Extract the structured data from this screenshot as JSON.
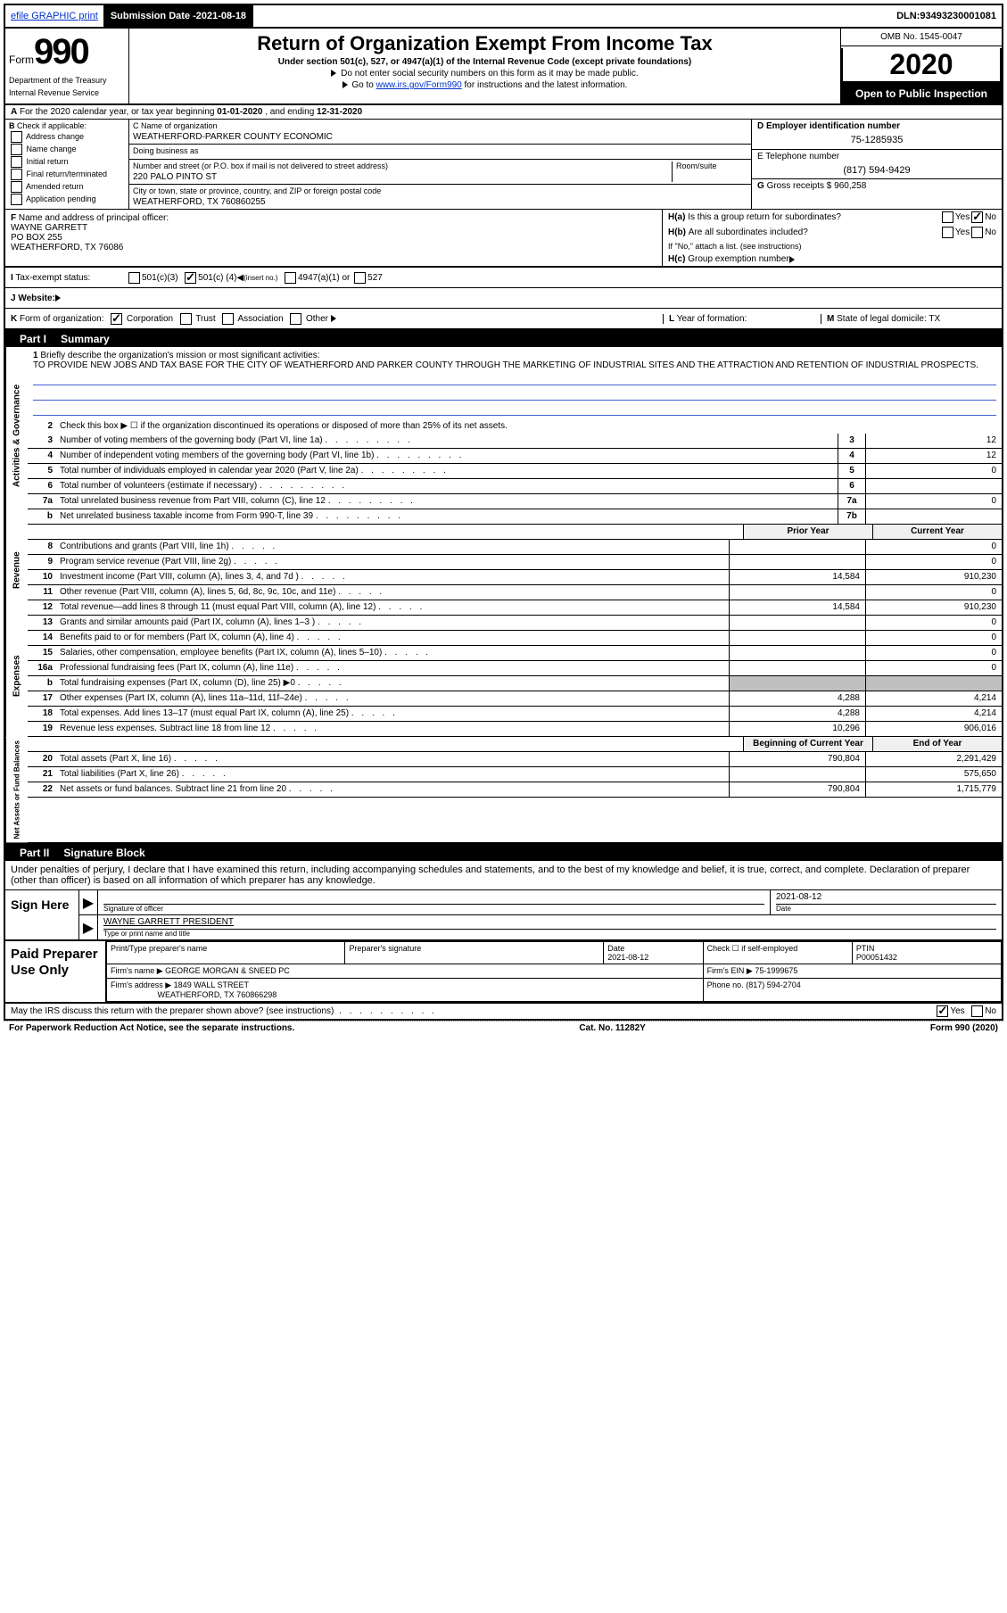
{
  "header": {
    "efile": "efile GRAPHIC print",
    "submission_label": "Submission Date - ",
    "submission_date": "2021-08-18",
    "dln_label": "DLN: ",
    "dln": "93493230001081"
  },
  "form": {
    "form_word": "Form",
    "form_num": "990",
    "title": "Return of Organization Exempt From Income Tax",
    "subtitle": "Under section 501(c), 527, or 4947(a)(1) of the Internal Revenue Code (except private foundations)",
    "ssn_note": "Do not enter social security numbers on this form as it may be made public.",
    "goto_pre": "Go to ",
    "goto_link": "www.irs.gov/Form990",
    "goto_post": " for instructions and the latest information.",
    "omb": "OMB No. 1545-0047",
    "year": "2020",
    "open_public": "Open to Public Inspection",
    "dept1": "Department of the Treasury",
    "dept2": "Internal Revenue Service"
  },
  "rowA": {
    "text_pre": "For the 2020 calendar year, or tax year beginning ",
    "begin": "01-01-2020",
    "text_mid": " , and ending ",
    "end": "12-31-2020",
    "label": "A"
  },
  "boxB": {
    "label": "B",
    "intro": "Check if applicable:",
    "items": [
      "Address change",
      "Name change",
      "Initial return",
      "Final return/terminated",
      "Amended return",
      "Application pending"
    ]
  },
  "boxC": {
    "name_label": "C Name of organization",
    "name": "WEATHERFORD-PARKER COUNTY ECONOMIC",
    "dba_label": "Doing business as",
    "dba": "",
    "addr_label": "Number and street (or P.O. box if mail is not delivered to street address)",
    "room_label": "Room/suite",
    "addr": "220 PALO PINTO ST",
    "city_label": "City or town, state or province, country, and ZIP or foreign postal code",
    "city": "WEATHERFORD, TX  760860255"
  },
  "boxD": {
    "label": "D Employer identification number",
    "ein": "75-1285935"
  },
  "boxE": {
    "label": "E Telephone number",
    "phone": "(817) 594-9429"
  },
  "boxG": {
    "label": "G",
    "text": "Gross receipts $",
    "val": "960,258"
  },
  "boxF": {
    "label": "F",
    "text": "Name and address of principal officer:",
    "name": "WAYNE GARRETT",
    "addr1": "PO BOX 255",
    "addr2": "WEATHERFORD, TX  76086"
  },
  "boxH": {
    "ha": "H(a)",
    "ha_text": "Is this a group return for subordinates?",
    "hb": "H(b)",
    "hb_text": "Are all subordinates included?",
    "hb_note": "If \"No,\" attach a list. (see instructions)",
    "hc": "H(c)",
    "hc_text": "Group exemption number",
    "yes": "Yes",
    "no": "No"
  },
  "rowI": {
    "label": "I",
    "text": "Tax-exempt status:",
    "opt1": "501(c)(3)",
    "opt2_pre": "501(c) (",
    "opt2_val": "4",
    "opt2_post": ") ",
    "opt2_insert": "(insert no.)",
    "opt3": "4947(a)(1) or",
    "opt4": "527"
  },
  "rowJ": {
    "label": "J",
    "text": "Website:"
  },
  "rowK": {
    "label": "K",
    "text": "Form of organization:",
    "opts": [
      "Corporation",
      "Trust",
      "Association",
      "Other"
    ]
  },
  "rowL": {
    "label": "L",
    "text": "Year of formation:"
  },
  "rowM": {
    "label": "M",
    "text": "State of legal domicile:",
    "val": "TX"
  },
  "part1": {
    "part": "Part I",
    "title": "Summary"
  },
  "summary": {
    "line1_label": "1",
    "line1": "Briefly describe the organization's mission or most significant activities:",
    "mission": "TO PROVIDE NEW JOBS AND TAX BASE FOR THE CITY OF WEATHERFORD AND PARKER COUNTY THROUGH THE MARKETING OF INDUSTRIAL SITES AND THE ATTRACTION AND RETENTION OF INDUSTRIAL PROSPECTS.",
    "vert1": "Activities & Governance",
    "line2": "Check this box ▶ ☐ if the organization discontinued its operations or disposed of more than 25% of its net assets.",
    "lines_ag": [
      {
        "n": "3",
        "t": "Number of voting members of the governing body (Part VI, line 1a)",
        "r": "3",
        "v": "12"
      },
      {
        "n": "4",
        "t": "Number of independent voting members of the governing body (Part VI, line 1b)",
        "r": "4",
        "v": "12"
      },
      {
        "n": "5",
        "t": "Total number of individuals employed in calendar year 2020 (Part V, line 2a)",
        "r": "5",
        "v": "0"
      },
      {
        "n": "6",
        "t": "Total number of volunteers (estimate if necessary)",
        "r": "6",
        "v": ""
      },
      {
        "n": "7a",
        "t": "Total unrelated business revenue from Part VIII, column (C), line 12",
        "r": "7a",
        "v": "0"
      },
      {
        "n": "b",
        "t": "Net unrelated business taxable income from Form 990-T, line 39",
        "r": "7b",
        "v": ""
      }
    ],
    "prior_year": "Prior Year",
    "current_year": "Current Year",
    "vert2": "Revenue",
    "lines_rev": [
      {
        "n": "8",
        "t": "Contributions and grants (Part VIII, line 1h)",
        "p": "",
        "c": "0"
      },
      {
        "n": "9",
        "t": "Program service revenue (Part VIII, line 2g)",
        "p": "",
        "c": "0"
      },
      {
        "n": "10",
        "t": "Investment income (Part VIII, column (A), lines 3, 4, and 7d )",
        "p": "14,584",
        "c": "910,230"
      },
      {
        "n": "11",
        "t": "Other revenue (Part VIII, column (A), lines 5, 6d, 8c, 9c, 10c, and 11e)",
        "p": "",
        "c": "0"
      },
      {
        "n": "12",
        "t": "Total revenue—add lines 8 through 11 (must equal Part VIII, column (A), line 12)",
        "p": "14,584",
        "c": "910,230"
      }
    ],
    "vert3": "Expenses",
    "lines_exp": [
      {
        "n": "13",
        "t": "Grants and similar amounts paid (Part IX, column (A), lines 1–3 )",
        "p": "",
        "c": "0"
      },
      {
        "n": "14",
        "t": "Benefits paid to or for members (Part IX, column (A), line 4)",
        "p": "",
        "c": "0"
      },
      {
        "n": "15",
        "t": "Salaries, other compensation, employee benefits (Part IX, column (A), lines 5–10)",
        "p": "",
        "c": "0"
      },
      {
        "n": "16a",
        "t": "Professional fundraising fees (Part IX, column (A), line 11e)",
        "p": "",
        "c": "0"
      },
      {
        "n": "b",
        "t": "Total fundraising expenses (Part IX, column (D), line 25) ▶0",
        "p": "GREY",
        "c": "GREY"
      },
      {
        "n": "17",
        "t": "Other expenses (Part IX, column (A), lines 11a–11d, 11f–24e)",
        "p": "4,288",
        "c": "4,214"
      },
      {
        "n": "18",
        "t": "Total expenses. Add lines 13–17 (must equal Part IX, column (A), line 25)",
        "p": "4,288",
        "c": "4,214"
      },
      {
        "n": "19",
        "t": "Revenue less expenses. Subtract line 18 from line 12",
        "p": "10,296",
        "c": "906,016"
      }
    ],
    "vert4": "Net Assets or Fund Balances",
    "begin_year": "Beginning of Current Year",
    "end_year": "End of Year",
    "lines_net": [
      {
        "n": "20",
        "t": "Total assets (Part X, line 16)",
        "p": "790,804",
        "c": "2,291,429"
      },
      {
        "n": "21",
        "t": "Total liabilities (Part X, line 26)",
        "p": "",
        "c": "575,650"
      },
      {
        "n": "22",
        "t": "Net assets or fund balances. Subtract line 21 from line 20",
        "p": "790,804",
        "c": "1,715,779"
      }
    ]
  },
  "part2": {
    "part": "Part II",
    "title": "Signature Block",
    "penalty": "Under penalties of perjury, I declare that I have examined this return, including accompanying schedules and statements, and to the best of my knowledge and belief, it is true, correct, and complete. Declaration of preparer (other than officer) is based on all information of which preparer has any knowledge."
  },
  "sign": {
    "label": "Sign Here",
    "sig_officer": "Signature of officer",
    "date_label": "Date",
    "date": "2021-08-12",
    "name": "WAYNE GARRETT PRESIDENT",
    "type_label": "Type or print name and title"
  },
  "paid": {
    "label": "Paid Preparer Use Only",
    "h_print": "Print/Type preparer's name",
    "h_sig": "Preparer's signature",
    "h_date": "Date",
    "date": "2021-08-12",
    "h_check": "Check ☐ if self-employed",
    "h_ptin": "PTIN",
    "ptin": "P00051432",
    "firm_name_label": "Firm's name    ▶",
    "firm_name": "GEORGE MORGAN & SNEED PC",
    "firm_ein_label": "Firm's EIN ▶",
    "firm_ein": "75-1999675",
    "firm_addr_label": "Firm's address ▶",
    "firm_addr1": "1849 WALL STREET",
    "firm_addr2": "WEATHERFORD, TX  760866298",
    "phone_label": "Phone no.",
    "phone": "(817) 594-2704"
  },
  "footer": {
    "discuss": "May the IRS discuss this return with the preparer shown above? (see instructions)",
    "yes": "Yes",
    "no": "No",
    "pra": "For Paperwork Reduction Act Notice, see the separate instructions.",
    "cat": "Cat. No. 11282Y",
    "formref": "Form 990 (2020)"
  },
  "colors": {
    "link": "#0033cc",
    "underline": "#4060d0",
    "grey": "#c0c0c0"
  }
}
